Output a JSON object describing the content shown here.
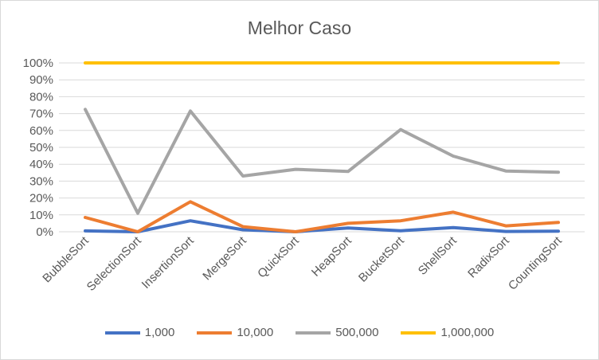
{
  "chart_data": {
    "type": "line",
    "title": "Melhor Caso",
    "categories": [
      "BubbleSort",
      "SelectionSort",
      "InsertionSort",
      "MergeSort",
      "QuickSort",
      "HeapSort",
      "BucketSort",
      "ShellSort",
      "RadixSort",
      "CountingSort"
    ],
    "ylim": [
      0,
      1
    ],
    "y_ticks": [
      "0%",
      "10%",
      "20%",
      "30%",
      "40%",
      "50%",
      "60%",
      "70%",
      "80%",
      "90%",
      "100%"
    ],
    "grid": true,
    "legend_position": "bottom",
    "series": [
      {
        "name": "1,000",
        "color": "#4472c4",
        "values": [
          0.005,
          0.0,
          0.065,
          0.012,
          0.0,
          0.022,
          0.006,
          0.025,
          0.002,
          0.004
        ]
      },
      {
        "name": "10,000",
        "color": "#ed7d31",
        "values": [
          0.085,
          0.0,
          0.178,
          0.03,
          0.0,
          0.05,
          0.065,
          0.116,
          0.035,
          0.055
        ]
      },
      {
        "name": "500,000",
        "color": "#a5a5a5",
        "values": [
          0.725,
          0.11,
          0.715,
          0.33,
          0.37,
          0.357,
          0.605,
          0.448,
          0.36,
          0.353
        ]
      },
      {
        "name": "1,000,000",
        "color": "#ffc000",
        "values": [
          1.0,
          1.0,
          1.0,
          1.0,
          1.0,
          1.0,
          1.0,
          1.0,
          1.0,
          1.0
        ]
      }
    ]
  }
}
